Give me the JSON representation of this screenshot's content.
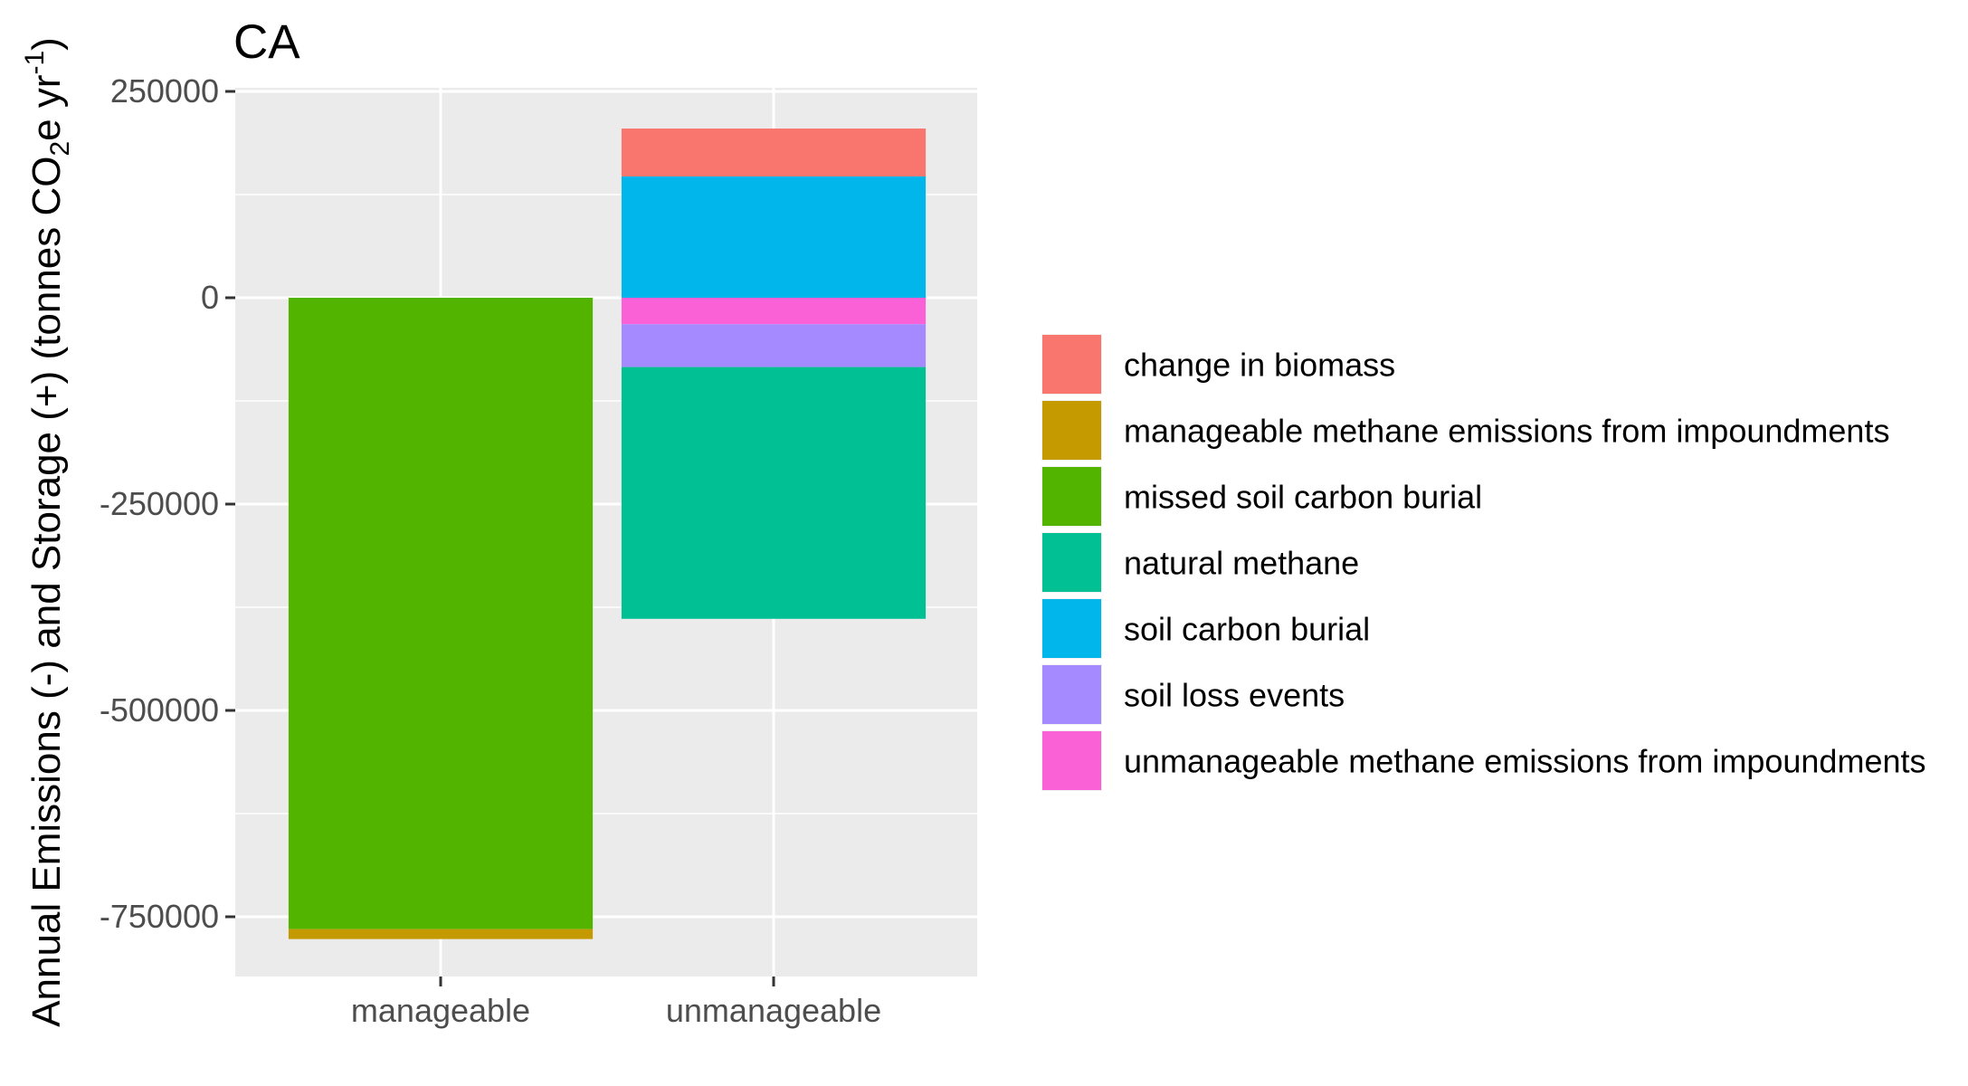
{
  "chart_data": {
    "type": "bar",
    "stacked": true,
    "title": "CA",
    "ylabel": {
      "prefix": "Annual Emissions (-) and Storage (+) (tonnes CO",
      "sub": "2",
      "mid": "e yr",
      "sup": "-1",
      "suffix": ")"
    },
    "xlabel": "",
    "categories": [
      "manageable",
      "unmanageable"
    ],
    "ylim": [
      -805000,
      250000
    ],
    "yticks": [
      250000,
      0,
      -250000,
      -500000,
      -750000
    ],
    "ytick_labels": [
      "250000",
      "0",
      "-250000",
      "-500000",
      "-750000"
    ],
    "grid": true,
    "legend_position": "right",
    "series": [
      {
        "name": "change in biomass",
        "color": "#F8766D",
        "values": [
          0,
          58000
        ]
      },
      {
        "name": "manageable methane emissions from impoundments",
        "color": "#C49A00",
        "values": [
          -12000,
          0
        ]
      },
      {
        "name": "missed soil carbon burial",
        "color": "#53B400",
        "values": [
          -765000,
          0
        ]
      },
      {
        "name": "natural methane",
        "color": "#00C094",
        "values": [
          0,
          -305000
        ]
      },
      {
        "name": "soil carbon burial",
        "color": "#00B6EB",
        "values": [
          0,
          147000
        ]
      },
      {
        "name": "soil loss events",
        "color": "#A58AFF",
        "values": [
          0,
          -52000
        ]
      },
      {
        "name": "unmanageable methane emissions from impoundments",
        "color": "#FB61D7",
        "values": [
          0,
          -32000
        ]
      }
    ]
  }
}
